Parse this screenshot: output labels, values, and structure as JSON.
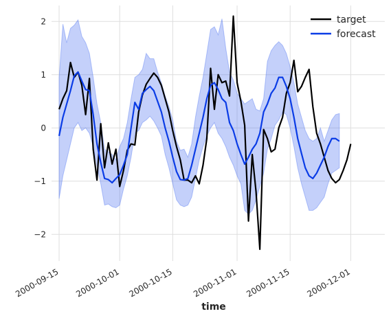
{
  "chart_data": {
    "type": "line",
    "title": "",
    "xlabel": "time",
    "ylabel": "",
    "x_range": [
      "2000-09-13",
      "2000-12-10"
    ],
    "ylim": [
      -2.5,
      2.3
    ],
    "grid": true,
    "legend_position": "top-right",
    "x_ticks": [
      {
        "date": "2000-09-15",
        "label": "2000-09-15"
      },
      {
        "date": "2000-10-01",
        "label": "2000-10-01"
      },
      {
        "date": "2000-10-15",
        "label": "2000-10-15"
      },
      {
        "date": "2000-11-01",
        "label": "2000-11-01"
      },
      {
        "date": "2000-11-15",
        "label": "2000-11-15"
      },
      {
        "date": "2000-12-01",
        "label": "2000-12-01"
      }
    ],
    "y_ticks": [
      {
        "value": -2,
        "label": "−2"
      },
      {
        "value": -1,
        "label": "−1"
      },
      {
        "value": 0,
        "label": "0"
      },
      {
        "value": 1,
        "label": "1"
      },
      {
        "value": 2,
        "label": "2"
      }
    ],
    "series": [
      {
        "name": "target",
        "color": "#000000",
        "points": [
          [
            "2000-09-15",
            0.35
          ],
          [
            "2000-09-16",
            0.55
          ],
          [
            "2000-09-17",
            0.7
          ],
          [
            "2000-09-18",
            1.23
          ],
          [
            "2000-09-19",
            0.95
          ],
          [
            "2000-09-20",
            1.05
          ],
          [
            "2000-09-21",
            0.8
          ],
          [
            "2000-09-22",
            0.25
          ],
          [
            "2000-09-23",
            0.93
          ],
          [
            "2000-09-24",
            -0.4
          ],
          [
            "2000-09-25",
            -0.98
          ],
          [
            "2000-09-26",
            0.08
          ],
          [
            "2000-09-27",
            -0.75
          ],
          [
            "2000-09-28",
            -0.28
          ],
          [
            "2000-09-29",
            -0.68
          ],
          [
            "2000-09-30",
            -0.4
          ],
          [
            "2000-10-01",
            -1.1
          ],
          [
            "2000-10-02",
            -0.8
          ],
          [
            "2000-10-03",
            -0.42
          ],
          [
            "2000-10-04",
            -0.3
          ],
          [
            "2000-10-05",
            -0.32
          ],
          [
            "2000-10-06",
            0.3
          ],
          [
            "2000-10-07",
            0.62
          ],
          [
            "2000-10-08",
            0.82
          ],
          [
            "2000-10-09",
            0.93
          ],
          [
            "2000-10-10",
            1.03
          ],
          [
            "2000-10-11",
            0.95
          ],
          [
            "2000-10-12",
            0.8
          ],
          [
            "2000-10-13",
            0.55
          ],
          [
            "2000-10-14",
            0.3
          ],
          [
            "2000-10-15",
            -0.05
          ],
          [
            "2000-10-16",
            -0.35
          ],
          [
            "2000-10-17",
            -0.6
          ],
          [
            "2000-10-18",
            -0.98
          ],
          [
            "2000-10-19",
            -0.98
          ],
          [
            "2000-10-20",
            -1.03
          ],
          [
            "2000-10-21",
            -0.9
          ],
          [
            "2000-10-22",
            -1.05
          ],
          [
            "2000-10-23",
            -0.7
          ],
          [
            "2000-10-24",
            -0.2
          ],
          [
            "2000-10-25",
            1.12
          ],
          [
            "2000-10-26",
            0.35
          ],
          [
            "2000-10-27",
            1.0
          ],
          [
            "2000-10-28",
            0.85
          ],
          [
            "2000-10-29",
            0.88
          ],
          [
            "2000-10-30",
            0.6
          ],
          [
            "2000-10-31",
            2.1
          ],
          [
            "2000-11-01",
            0.85
          ],
          [
            "2000-11-02",
            0.5
          ],
          [
            "2000-11-03",
            0.05
          ],
          [
            "2000-11-04",
            -1.75
          ],
          [
            "2000-11-05",
            -0.5
          ],
          [
            "2000-11-06",
            -1.2
          ],
          [
            "2000-11-07",
            -2.28
          ],
          [
            "2000-11-08",
            -0.03
          ],
          [
            "2000-11-09",
            -0.2
          ],
          [
            "2000-11-10",
            -0.45
          ],
          [
            "2000-11-11",
            -0.4
          ],
          [
            "2000-11-12",
            0.0
          ],
          [
            "2000-11-13",
            0.2
          ],
          [
            "2000-11-14",
            0.65
          ],
          [
            "2000-11-15",
            0.85
          ],
          [
            "2000-11-16",
            1.27
          ],
          [
            "2000-11-17",
            0.68
          ],
          [
            "2000-11-18",
            0.78
          ],
          [
            "2000-11-19",
            0.95
          ],
          [
            "2000-11-20",
            1.1
          ],
          [
            "2000-11-21",
            0.4
          ],
          [
            "2000-11-22",
            -0.1
          ],
          [
            "2000-11-23",
            -0.3
          ],
          [
            "2000-11-24",
            -0.55
          ],
          [
            "2000-11-25",
            -0.8
          ],
          [
            "2000-11-26",
            -0.95
          ],
          [
            "2000-11-27",
            -1.03
          ],
          [
            "2000-11-28",
            -0.97
          ],
          [
            "2000-11-29",
            -0.8
          ],
          [
            "2000-11-30",
            -0.6
          ],
          [
            "2000-12-01",
            -0.3
          ]
        ]
      },
      {
        "name": "forecast",
        "color": "#0a3ce6",
        "band_color": "#3a64f0",
        "points": [
          [
            "2000-09-15",
            -0.15,
            -1.33,
            0.95
          ],
          [
            "2000-09-16",
            0.2,
            -0.9,
            1.95
          ],
          [
            "2000-09-17",
            0.45,
            -0.6,
            1.6
          ],
          [
            "2000-09-18",
            0.7,
            -0.3,
            1.87
          ],
          [
            "2000-09-19",
            0.98,
            0.0,
            1.93
          ],
          [
            "2000-09-20",
            1.05,
            0.1,
            2.03
          ],
          [
            "2000-09-21",
            0.88,
            -0.05,
            1.72
          ],
          [
            "2000-09-22",
            0.72,
            0.0,
            1.6
          ],
          [
            "2000-09-23",
            0.7,
            -0.1,
            1.4
          ],
          [
            "2000-09-24",
            0.25,
            -0.35,
            0.95
          ],
          [
            "2000-09-25",
            -0.3,
            -0.7,
            0.45
          ],
          [
            "2000-09-26",
            -0.65,
            -1.05,
            0.1
          ],
          [
            "2000-09-27",
            -0.95,
            -1.45,
            -0.4
          ],
          [
            "2000-09-28",
            -0.97,
            -1.43,
            -0.45
          ],
          [
            "2000-09-29",
            -1.03,
            -1.48,
            -0.5
          ],
          [
            "2000-09-30",
            -0.95,
            -1.5,
            -0.6
          ],
          [
            "2000-10-01",
            -0.88,
            -1.45,
            -0.35
          ],
          [
            "2000-10-02",
            -0.7,
            -1.15,
            -0.2
          ],
          [
            "2000-10-03",
            -0.5,
            -0.9,
            0.1
          ],
          [
            "2000-10-04",
            0.0,
            -0.55,
            0.55
          ],
          [
            "2000-10-05",
            0.48,
            -0.1,
            0.95
          ],
          [
            "2000-10-06",
            0.35,
            -0.05,
            1.0
          ],
          [
            "2000-10-07",
            0.65,
            0.1,
            1.1
          ],
          [
            "2000-10-08",
            0.72,
            0.15,
            1.4
          ],
          [
            "2000-10-09",
            0.78,
            0.22,
            1.3
          ],
          [
            "2000-10-10",
            0.7,
            0.13,
            1.3
          ],
          [
            "2000-10-11",
            0.5,
            0.0,
            1.05
          ],
          [
            "2000-10-12",
            0.3,
            -0.15,
            0.85
          ],
          [
            "2000-10-13",
            0.0,
            -0.5,
            0.6
          ],
          [
            "2000-10-14",
            -0.25,
            -0.75,
            0.4
          ],
          [
            "2000-10-15",
            -0.55,
            -1.05,
            0.15
          ],
          [
            "2000-10-16",
            -0.82,
            -1.35,
            -0.25
          ],
          [
            "2000-10-17",
            -0.97,
            -1.45,
            -0.42
          ],
          [
            "2000-10-18",
            -0.98,
            -1.48,
            -0.4
          ],
          [
            "2000-10-19",
            -0.95,
            -1.45,
            -0.55
          ],
          [
            "2000-10-20",
            -0.7,
            -1.3,
            -0.3
          ],
          [
            "2000-10-21",
            -0.4,
            -0.95,
            0.2
          ],
          [
            "2000-10-22",
            -0.1,
            -0.6,
            0.6
          ],
          [
            "2000-10-23",
            0.2,
            -0.35,
            0.95
          ],
          [
            "2000-10-24",
            0.55,
            -0.15,
            1.4
          ],
          [
            "2000-10-25",
            0.8,
            0.0,
            1.85
          ],
          [
            "2000-10-26",
            0.85,
            0.1,
            1.9
          ],
          [
            "2000-10-27",
            0.72,
            -0.1,
            1.75
          ],
          [
            "2000-10-28",
            0.55,
            -0.2,
            2.05
          ],
          [
            "2000-10-29",
            0.48,
            -0.35,
            1.5
          ],
          [
            "2000-10-30",
            0.1,
            -0.55,
            1.05
          ],
          [
            "2000-10-31",
            -0.05,
            -0.7,
            0.9
          ],
          [
            "2000-11-01",
            -0.3,
            -0.9,
            0.65
          ],
          [
            "2000-11-02",
            -0.5,
            -1.05,
            0.55
          ],
          [
            "2000-11-03",
            -0.68,
            -1.55,
            0.45
          ],
          [
            "2000-11-04",
            -0.55,
            -1.62,
            0.5
          ],
          [
            "2000-11-05",
            -0.4,
            -1.55,
            0.55
          ],
          [
            "2000-11-06",
            -0.3,
            -1.35,
            0.35
          ],
          [
            "2000-11-07",
            -0.1,
            -1.1,
            0.32
          ],
          [
            "2000-11-08",
            0.3,
            -0.85,
            0.55
          ],
          [
            "2000-11-09",
            0.45,
            -0.4,
            1.25
          ],
          [
            "2000-11-10",
            0.65,
            -0.2,
            1.45
          ],
          [
            "2000-11-11",
            0.75,
            0.05,
            1.55
          ],
          [
            "2000-11-12",
            0.95,
            0.15,
            1.62
          ],
          [
            "2000-11-13",
            0.95,
            0.3,
            1.55
          ],
          [
            "2000-11-14",
            0.78,
            0.25,
            1.4
          ],
          [
            "2000-11-15",
            0.55,
            0.0,
            1.15
          ],
          [
            "2000-11-16",
            0.2,
            -0.35,
            0.85
          ],
          [
            "2000-11-17",
            -0.2,
            -0.75,
            0.45
          ],
          [
            "2000-11-18",
            -0.48,
            -1.05,
            0.2
          ],
          [
            "2000-11-19",
            -0.75,
            -1.3,
            -0.05
          ],
          [
            "2000-11-20",
            -0.9,
            -1.55,
            -0.2
          ],
          [
            "2000-11-21",
            -0.95,
            -1.55,
            -0.25
          ],
          [
            "2000-11-22",
            -0.85,
            -1.5,
            -0.2
          ],
          [
            "2000-11-23",
            -0.7,
            -1.4,
            0.0
          ],
          [
            "2000-11-24",
            -0.55,
            -1.3,
            -0.25
          ],
          [
            "2000-11-25",
            -0.35,
            -1.05,
            -0.05
          ],
          [
            "2000-11-26",
            -0.2,
            -0.85,
            0.15
          ],
          [
            "2000-11-27",
            -0.2,
            -0.8,
            0.25
          ],
          [
            "2000-11-28",
            -0.25,
            -0.75,
            0.27
          ]
        ]
      }
    ]
  }
}
